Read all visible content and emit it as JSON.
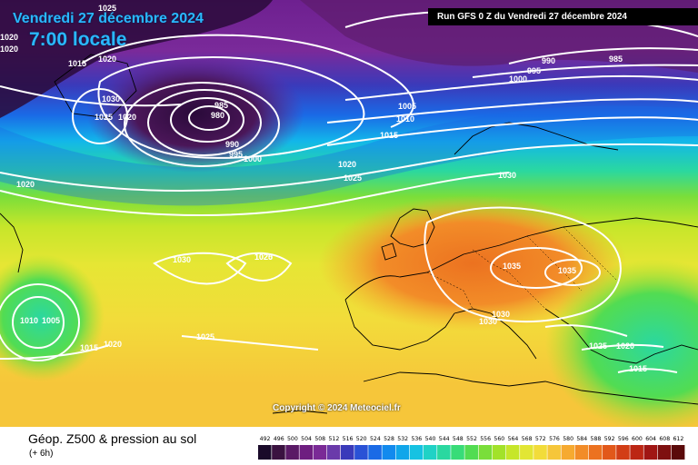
{
  "map": {
    "title_date": "Vendredi 27 décembre 2024",
    "title_time": "7:00 locale",
    "run_info": "Run GFS 0 Z du Vendredi 27 décembre 2024",
    "copyright": "Copyright © 2024 Meteociel.fr",
    "isobar_labels": [
      "1025",
      "1020",
      "1020",
      "1020",
      "1015",
      "1020",
      "1030",
      "1025",
      "1020",
      "985",
      "980",
      "990",
      "995",
      "1000",
      "990",
      "995",
      "985",
      "1000",
      "1005",
      "1010",
      "1015",
      "1020",
      "1025",
      "1030",
      "1020",
      "1030",
      "1025",
      "1035",
      "1035",
      "1030",
      "1030",
      "1010",
      "1005",
      "1015",
      "1020",
      "1025",
      "1025",
      "1020",
      "1015"
    ]
  },
  "legend": {
    "title": "Géop. Z500 & pression au sol",
    "subtitle": "(+ 6h)",
    "scale_values": [
      "492",
      "496",
      "500",
      "504",
      "508",
      "512",
      "516",
      "520",
      "524",
      "528",
      "532",
      "536",
      "540",
      "544",
      "548",
      "552",
      "556",
      "560",
      "564",
      "568",
      "572",
      "576",
      "580",
      "584",
      "588",
      "592",
      "596",
      "600",
      "604",
      "608",
      "612"
    ],
    "scale_colors": [
      "#1a0a2a",
      "#3a1240",
      "#5a1a66",
      "#6e1e80",
      "#7a2a96",
      "#6a3aaa",
      "#3a3aba",
      "#2a52d6",
      "#1a6ae6",
      "#128aee",
      "#10a6ea",
      "#16c2e2",
      "#20d2c6",
      "#2ad8a0",
      "#38dc78",
      "#52dc52",
      "#7ade3a",
      "#a2e22a",
      "#c6e62a",
      "#e2e634",
      "#f2dc3a",
      "#f6c63a",
      "#f6aa30",
      "#f28c28",
      "#ec7220",
      "#e2581a",
      "#d23e16",
      "#bc2614",
      "#a01614",
      "#7e1010",
      "#5a0a0a"
    ]
  },
  "colors": {
    "arctic": "#2a0a3a",
    "low_core": "#4a1658",
    "mid_purple": "#7a2a9a",
    "blue_band": "#1a5ae6",
    "cyan_band": "#12b6ea",
    "green_band": "#52dc52",
    "yellow_band": "#e6e634",
    "ridge_orange": "#f28c28",
    "isobar": "#ffffff",
    "coastline": "#000000"
  }
}
